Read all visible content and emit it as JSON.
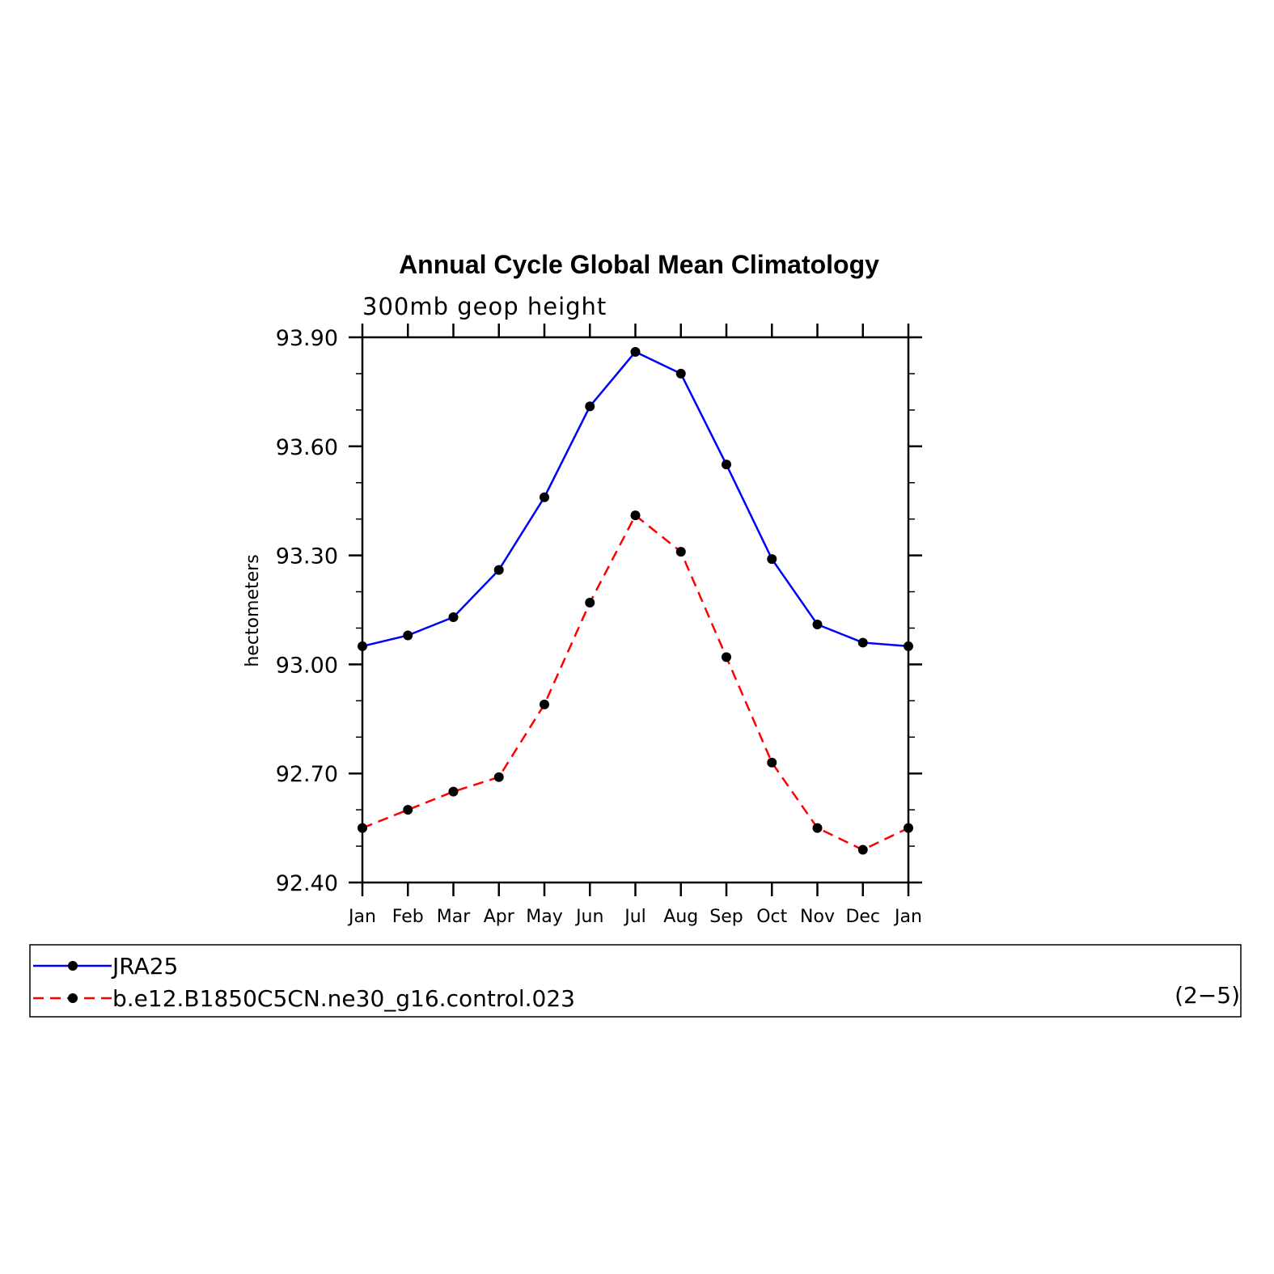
{
  "chart_data": {
    "type": "line",
    "title": "Annual Cycle Global Mean Climatology",
    "subtitle": "300mb geop height",
    "ylabel": "hectometers",
    "xlabel": "",
    "categories": [
      "Jan",
      "Feb",
      "Mar",
      "Apr",
      "May",
      "Jun",
      "Jul",
      "Aug",
      "Sep",
      "Oct",
      "Nov",
      "Dec",
      "Jan"
    ],
    "ylim": [
      92.4,
      93.9
    ],
    "yticks": [
      "93.90",
      "93.60",
      "93.30",
      "93.00",
      "92.70",
      "92.40"
    ],
    "ytick_values": [
      93.9,
      93.6,
      93.3,
      93.0,
      92.7,
      92.4
    ],
    "grid": false,
    "legend_position": "bottom",
    "series": [
      {
        "name": "JRA25",
        "color": "#0000ff",
        "dash": "solid",
        "values": [
          93.05,
          93.08,
          93.13,
          93.26,
          93.46,
          93.71,
          93.86,
          93.8,
          93.55,
          93.29,
          93.11,
          93.06,
          93.05
        ]
      },
      {
        "name": "b.e12.B1850C5CN.ne30_g16.control.023",
        "color": "#ff0000",
        "dash": "dashed",
        "values": [
          92.55,
          92.6,
          92.65,
          92.69,
          92.89,
          93.17,
          93.41,
          93.31,
          93.02,
          92.73,
          92.55,
          92.49,
          92.55
        ]
      }
    ],
    "annotation": "(2−5)"
  }
}
